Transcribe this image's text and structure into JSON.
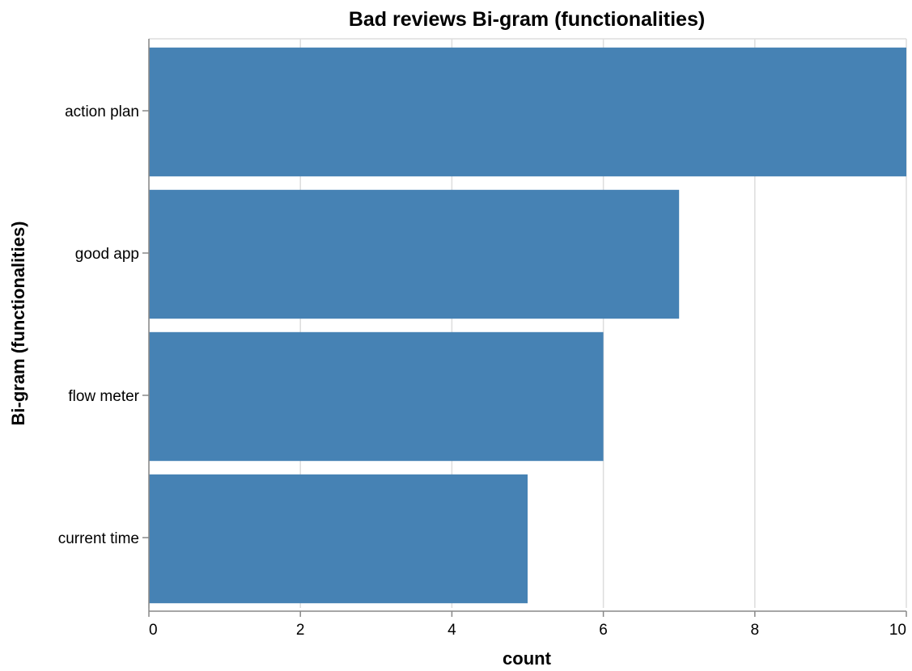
{
  "chart_data": {
    "type": "bar",
    "orientation": "horizontal",
    "title": "Bad reviews Bi-gram (functionalities)",
    "xlabel": "count",
    "ylabel": "Bi-gram (functionalities)",
    "categories": [
      "action plan",
      "good app",
      "flow meter",
      "current time"
    ],
    "values": [
      10,
      7,
      6,
      5
    ],
    "xlim": [
      0,
      10
    ],
    "xticks": [
      0,
      2,
      4,
      6,
      8,
      10
    ],
    "grid": true,
    "bar_color": "#4682b4"
  }
}
